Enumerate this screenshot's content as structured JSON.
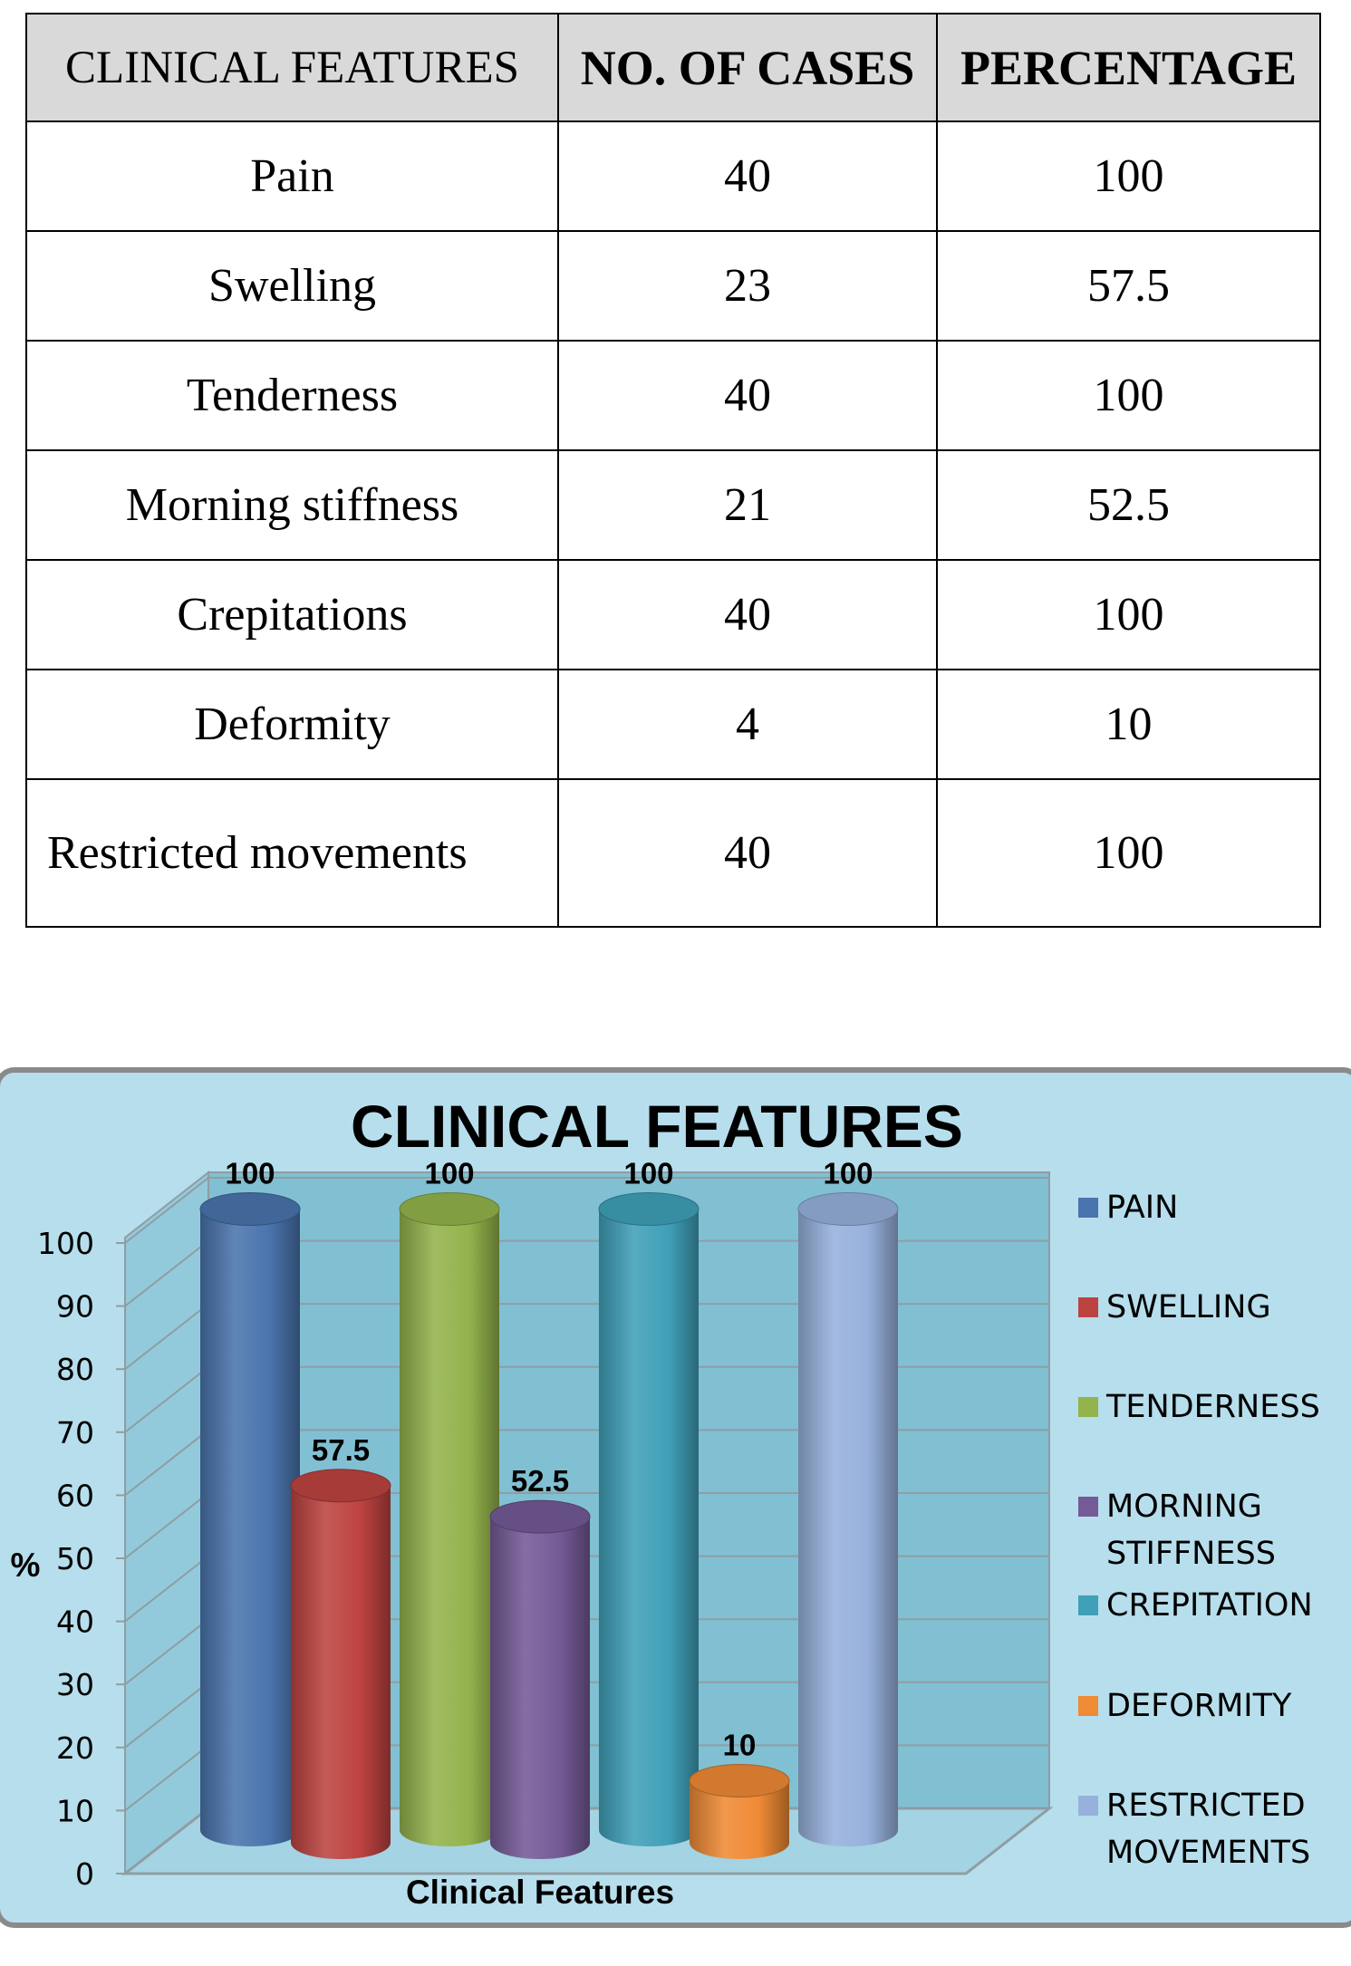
{
  "table": {
    "headers": [
      "CLINICAL FEATURES",
      "NO. OF CASES",
      "PERCENTAGE"
    ],
    "rows": [
      {
        "feature": "Pain",
        "cases": "40",
        "percentage": "100"
      },
      {
        "feature": "Swelling",
        "cases": "23",
        "percentage": "57.5"
      },
      {
        "feature": "Tenderness",
        "cases": "40",
        "percentage": "100"
      },
      {
        "feature": "Morning stiffness",
        "cases": "21",
        "percentage": "52.5"
      },
      {
        "feature": "Crepitations",
        "cases": "40",
        "percentage": "100"
      },
      {
        "feature": "Deformity",
        "cases": "4",
        "percentage": "10"
      },
      {
        "feature": "Restricted movements",
        "cases": "40",
        "percentage": "100"
      }
    ]
  },
  "chart_data": {
    "type": "bar",
    "title": "CLINICAL FEATURES",
    "xlabel": "Clinical Features",
    "ylabel": "%",
    "ylim": [
      0,
      100
    ],
    "yticks": [
      0,
      10,
      20,
      30,
      40,
      50,
      60,
      70,
      80,
      90,
      100
    ],
    "grid": true,
    "legend_position": "right",
    "series": [
      {
        "name": "PAIN",
        "value": 100,
        "label": "100",
        "color": "#4a74ad"
      },
      {
        "name": "SWELLING",
        "value": 57.5,
        "label": "57.5",
        "color": "#bd4340"
      },
      {
        "name": "TENDERNESS",
        "value": 100,
        "label": "100",
        "color": "#93b34c"
      },
      {
        "name": "MORNING STIFFNESS",
        "value": 52.5,
        "label": "52.5",
        "color": "#745a96"
      },
      {
        "name": "CREPITATION",
        "value": 100,
        "label": "100",
        "color": "#3fa0b8"
      },
      {
        "name": "DEFORMITY",
        "value": 10,
        "label": "10",
        "color": "#ef8a35"
      },
      {
        "name": "RESTRICTED MOVEMENTS",
        "value": 100,
        "label": "100",
        "color": "#97b1dc"
      }
    ],
    "colors": {
      "background": "#b7deec",
      "back_wall": "#80c0d2",
      "side_wall": "#93cadb",
      "floor": "#a4d3e3",
      "grid": "#8f9da3"
    }
  }
}
